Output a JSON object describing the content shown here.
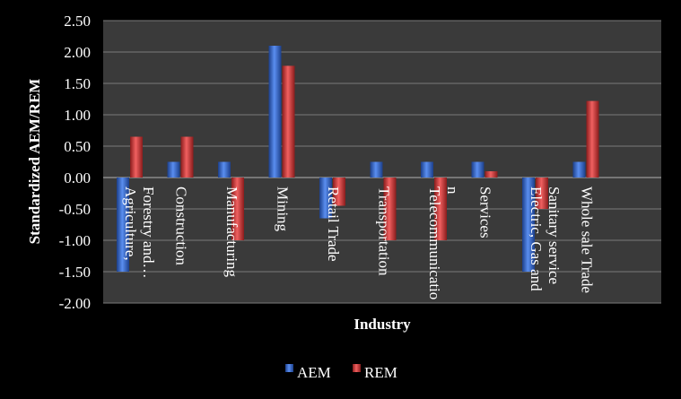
{
  "chart_data": {
    "type": "bar",
    "title": "",
    "xlabel": "Industry",
    "ylabel": "Standardized AEM/REM",
    "ylim": [
      -2.0,
      2.5
    ],
    "yticks": [
      "2.50",
      "2.00",
      "1.50",
      "1.00",
      "0.50",
      "0.00",
      "-0.50",
      "-1.00",
      "-1.50",
      "-2.00"
    ],
    "grid": true,
    "legend": "bottom",
    "categories": [
      [
        "Agriculture,",
        "Forestry and…"
      ],
      [
        "Construction"
      ],
      [
        "Manufacturing"
      ],
      [
        "Mining"
      ],
      [
        "Retail Trade"
      ],
      [
        "Transportation"
      ],
      [
        "Telecommunicatio",
        "n"
      ],
      [
        "Services"
      ],
      [
        "Electric, Gas and",
        "Sanitary service"
      ],
      [
        "Whole sale Trade"
      ]
    ],
    "series": [
      {
        "name": "AEM",
        "color": "#2e64c8",
        "values": [
          -1.5,
          0.25,
          0.25,
          2.1,
          -0.65,
          0.25,
          0.25,
          0.25,
          -1.5,
          0.25
        ]
      },
      {
        "name": "REM",
        "color": "#c83232",
        "values": [
          0.65,
          0.65,
          -1.0,
          1.78,
          -0.45,
          -1.0,
          -1.0,
          0.1,
          -0.5,
          1.22
        ]
      }
    ],
    "background": "#000000",
    "plot_background": "#3a3a3a",
    "text_color": "#ffffff"
  }
}
